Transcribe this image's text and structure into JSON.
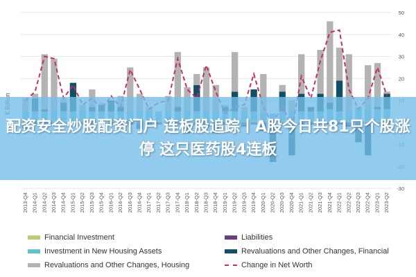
{
  "chart_data": {
    "type": "bar",
    "ylabel": "€ Billion",
    "ylim": [
      -30,
      50
    ],
    "yticks": [
      50,
      40,
      30,
      20,
      10,
      0,
      -10,
      -20,
      -30
    ],
    "categories": [
      "2013-Q4",
      "2014-Q1",
      "2014-Q2",
      "2014-Q3",
      "2014-Q4",
      "2015-Q1",
      "2015-Q2",
      "2015-Q3",
      "2015-Q4",
      "2016-Q1",
      "2016-Q2",
      "2016-Q3",
      "2016-Q4",
      "2017-Q1",
      "2017-Q2",
      "2017-Q3",
      "2017-Q4",
      "2018-Q1",
      "2018-Q2",
      "2018-Q3",
      "2018-Q4",
      "2019-Q1",
      "2019-Q2",
      "2019-Q3",
      "2019-Q4",
      "2020-Q1",
      "2020-Q2",
      "2020-Q3",
      "2020-Q4",
      "2021-Q1",
      "2021-Q2",
      "2021-Q3",
      "2021-Q4",
      "2022-Q1",
      "2022-Q2",
      "2022-Q3",
      "2022-Q4",
      "2023-Q1",
      "2023-Q2"
    ],
    "series": [
      {
        "name": "Financial Investment",
        "color": "#b8cf7a",
        "values": [
          1,
          1,
          1,
          1,
          1,
          1,
          1,
          1,
          1,
          1,
          1,
          1,
          1,
          1,
          1,
          1,
          1,
          1,
          1,
          1,
          1,
          1,
          1,
          1,
          1,
          1,
          1,
          1,
          1,
          1,
          1,
          1,
          1,
          1,
          1,
          1,
          1,
          1,
          1
        ]
      },
      {
        "name": "Liabilities",
        "color": "#6b3f7c",
        "values": [
          -1,
          -1,
          -1,
          -1,
          -1,
          -1,
          -1,
          -1,
          -1,
          -1,
          -1,
          -1,
          -1,
          -1,
          -1,
          -1,
          -1,
          -1,
          -1,
          -1,
          -1,
          -1,
          -1,
          -1,
          -1,
          -1,
          -1,
          -1,
          -1,
          -1,
          -1,
          -1,
          -1,
          -1,
          -1,
          -1,
          -1,
          -1,
          -1
        ]
      },
      {
        "name": "Investment in New Housing Assets",
        "color": "#5ec1cc",
        "values": [
          4,
          4,
          4,
          4,
          4,
          4,
          4,
          4,
          4,
          4,
          4,
          4,
          4,
          4,
          4,
          4,
          4,
          4,
          4,
          4,
          4,
          4,
          4,
          4,
          4,
          3,
          3,
          4,
          4,
          4,
          4,
          4,
          5,
          4,
          4,
          5,
          5,
          5,
          5
        ]
      },
      {
        "name": "Revaluations and Other Changes, Financial",
        "color": "#124f66",
        "values": [
          -2,
          6,
          1,
          0,
          4,
          13,
          0,
          2,
          3,
          5,
          2,
          0,
          -2,
          -1,
          0,
          0,
          2,
          -4,
          12,
          -1,
          -4,
          2,
          9,
          -1,
          10,
          -3,
          -17,
          9,
          -14,
          8,
          2,
          8,
          3,
          14,
          -1,
          -8,
          -14,
          1,
          7
        ]
      },
      {
        "name": "Revaluations and Other Changes, Housing",
        "color": "#b3b3b3",
        "values": [
          6,
          2,
          25,
          24,
          2,
          0,
          3,
          8,
          1,
          0,
          5,
          20,
          8,
          2,
          0,
          7,
          25,
          11,
          5,
          20,
          12,
          1,
          18,
          2,
          0,
          18,
          0,
          3,
          5,
          18,
          0,
          20,
          37,
          15,
          26,
          1,
          20,
          20,
          1
        ]
      }
    ],
    "lines": [
      {
        "name": "Change in Net Worth",
        "color": "#c72c6a",
        "values": [
          10,
          14,
          30,
          29,
          11,
          17,
          8,
          11,
          6,
          12,
          7,
          24,
          15,
          6,
          9,
          10,
          29,
          15,
          11,
          26,
          14,
          4,
          7,
          8,
          22,
          7,
          -1,
          8,
          -3,
          21,
          11,
          28,
          41,
          42,
          15,
          6,
          11,
          25,
          12
        ]
      }
    ]
  },
  "overlay": {
    "text": "配资安全炒股配资门户 连板股追踪丨A股今日共81只个股涨停 这只医药股4连板"
  }
}
